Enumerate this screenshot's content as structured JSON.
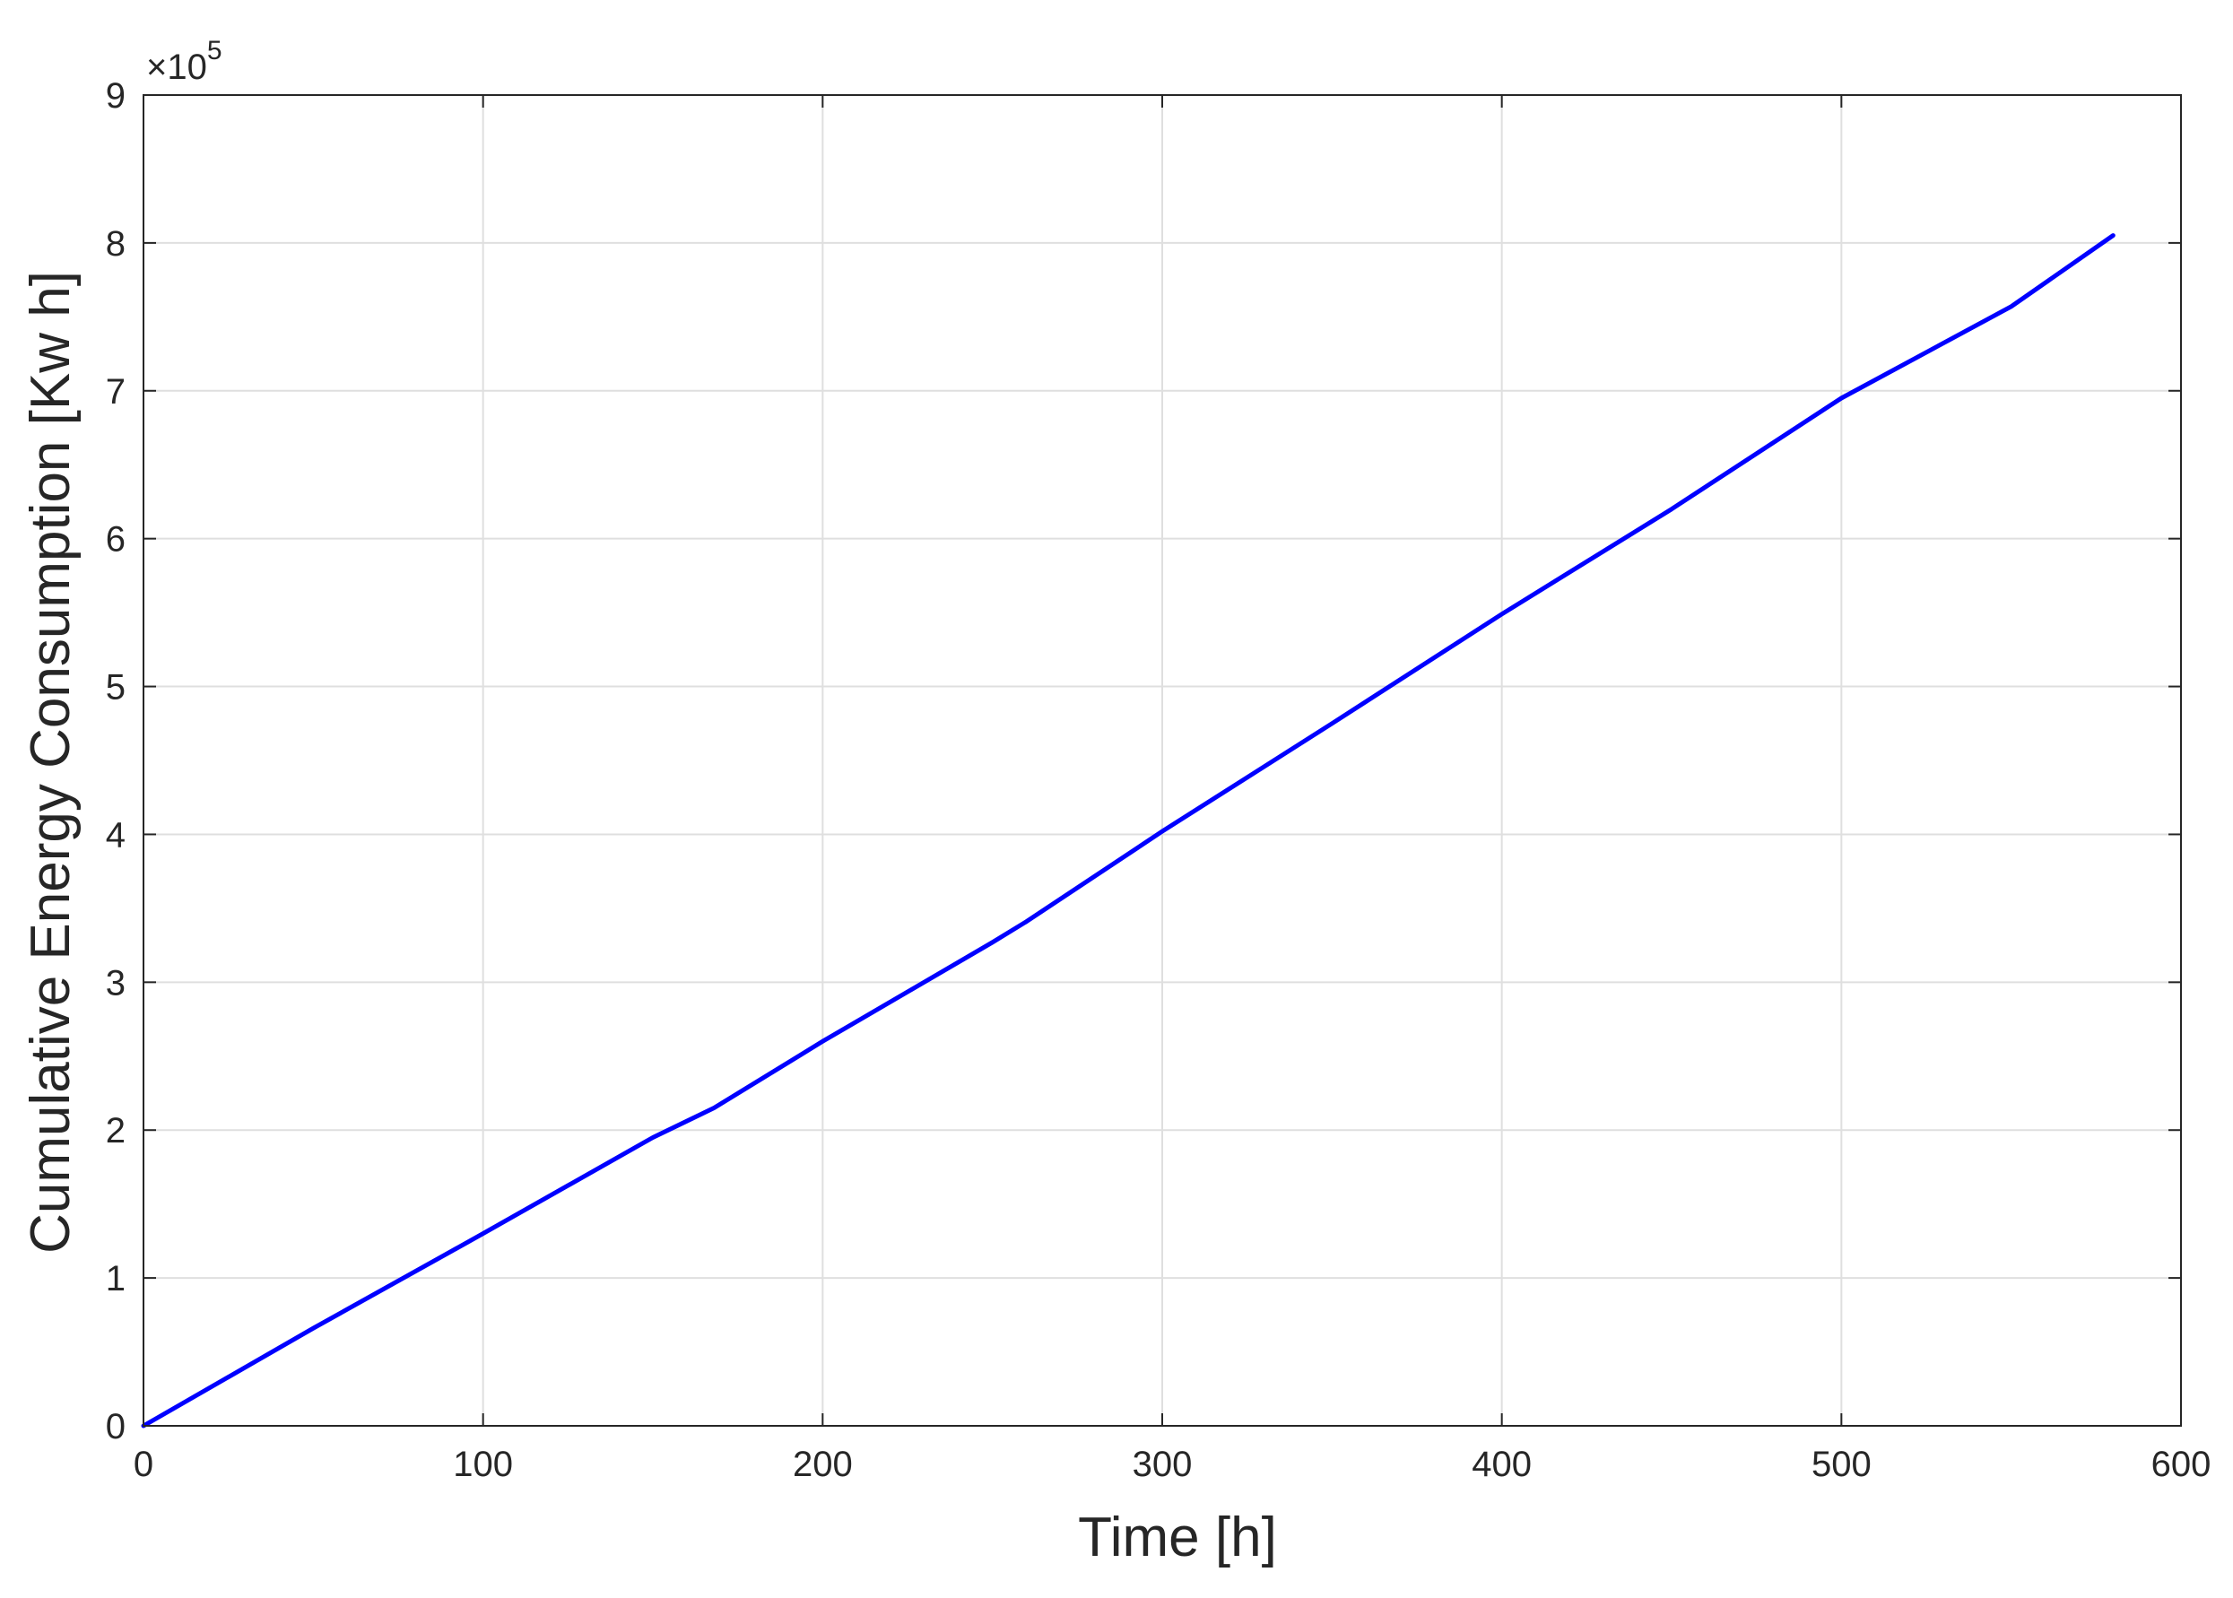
{
  "chart_data": {
    "type": "line",
    "title": "",
    "xlabel": "Time [h]",
    "ylabel": "Cumulative Energy Consumption [Kw h]",
    "exponent_label": {
      "base": "×10",
      "power": "5"
    },
    "xlim": [
      0,
      600
    ],
    "ylim": [
      0,
      900000
    ],
    "xticks": [
      0,
      100,
      200,
      300,
      400,
      500,
      600
    ],
    "xtick_labels": [
      "0",
      "100",
      "200",
      "300",
      "400",
      "500",
      "600"
    ],
    "yticks": [
      0,
      100000,
      200000,
      300000,
      400000,
      500000,
      600000,
      700000,
      800000,
      900000
    ],
    "ytick_labels": [
      "0",
      "1",
      "2",
      "3",
      "4",
      "5",
      "6",
      "7",
      "8",
      "9"
    ],
    "grid": true,
    "series": [
      {
        "color": "#0000ff",
        "x": [
          0,
          50,
          100,
          150,
          168,
          200,
          250,
          260,
          300,
          350,
          400,
          450,
          500,
          550,
          580
        ],
        "y": [
          0,
          66000,
          130000,
          195000,
          215000,
          260000,
          327000,
          341000,
          402000,
          475000,
          549000,
          620000,
          695000,
          757000,
          805000
        ]
      }
    ]
  }
}
